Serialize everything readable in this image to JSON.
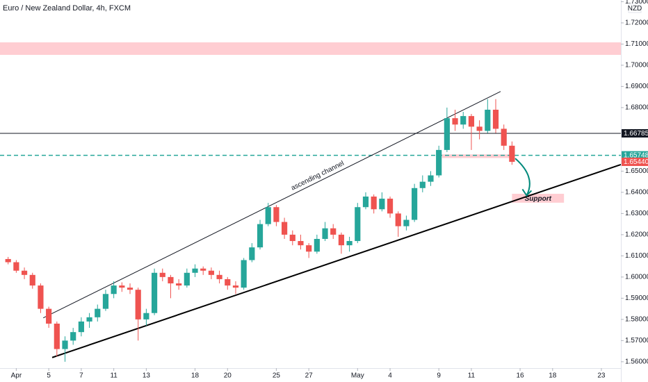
{
  "chart_data": {
    "type": "candlestick",
    "title": "Euro / New Zealand Dollar, 4h, FXCM",
    "currency": "NZD",
    "up_color": "#26a69a",
    "down_color": "#ef5350",
    "grid": false,
    "xlim": [
      -3,
      35.2
    ],
    "ylim": [
      1.557,
      1.7308
    ],
    "xticks": [
      {
        "value": -2,
        "label": "Apr"
      },
      {
        "value": 0,
        "label": "5"
      },
      {
        "value": 2,
        "label": "7"
      },
      {
        "value": 4,
        "label": "11"
      },
      {
        "value": 6,
        "label": "13"
      },
      {
        "value": 9,
        "label": "18"
      },
      {
        "value": 11,
        "label": "20"
      },
      {
        "value": 14,
        "label": "25"
      },
      {
        "value": 16,
        "label": "27"
      },
      {
        "value": 19,
        "label": "May"
      },
      {
        "value": 21,
        "label": "4"
      },
      {
        "value": 24,
        "label": "9"
      },
      {
        "value": 26,
        "label": "11"
      },
      {
        "value": 29,
        "label": "16"
      },
      {
        "value": 31,
        "label": "18"
      },
      {
        "value": 34,
        "label": "23"
      }
    ],
    "yticks": [
      {
        "value": 1.56,
        "label": "1.56000"
      },
      {
        "value": 1.57,
        "label": "1.57000"
      },
      {
        "value": 1.58,
        "label": "1.58000"
      },
      {
        "value": 1.59,
        "label": "1.59000"
      },
      {
        "value": 1.6,
        "label": "1.60000"
      },
      {
        "value": 1.61,
        "label": "1.61000"
      },
      {
        "value": 1.62,
        "label": "1.62000"
      },
      {
        "value": 1.63,
        "label": "1.63000"
      },
      {
        "value": 1.64,
        "label": "1.64000"
      },
      {
        "value": 1.65,
        "label": "1.65000"
      },
      {
        "value": 1.68,
        "label": "1.68000"
      },
      {
        "value": 1.69,
        "label": "1.69000"
      },
      {
        "value": 1.7,
        "label": "1.70000"
      },
      {
        "value": 1.71,
        "label": "1.71000"
      },
      {
        "value": 1.72,
        "label": "1.72000"
      },
      {
        "value": 1.73,
        "label": "1.73000"
      }
    ],
    "x": [
      -2.5,
      -2,
      -1.5,
      -1,
      -0.5,
      0,
      0.5,
      1,
      1.5,
      2,
      2.5,
      3,
      3.5,
      4,
      4.5,
      5,
      5.5,
      6,
      6.5,
      7,
      7.5,
      8,
      8.5,
      9,
      9.5,
      10,
      10.5,
      11,
      11.5,
      12,
      12.5,
      13,
      13.5,
      14,
      14.5,
      15,
      15.5,
      16,
      16.5,
      17,
      17.5,
      18,
      18.5,
      19,
      19.5,
      20,
      20.5,
      21,
      21.5,
      22,
      22.5,
      23,
      23.5,
      24,
      24.5,
      25,
      25.5,
      26,
      26.5,
      27,
      27.5,
      28,
      28.5
    ],
    "ohlc": [
      [
        1.6085,
        1.6095,
        1.606,
        1.607
      ],
      [
        1.607,
        1.608,
        1.602,
        1.603
      ],
      [
        1.603,
        1.6045,
        1.599,
        1.601
      ],
      [
        1.601,
        1.602,
        1.5945,
        1.596
      ],
      [
        1.596,
        1.597,
        1.583,
        1.585
      ],
      [
        1.585,
        1.586,
        1.576,
        1.578
      ],
      [
        1.578,
        1.579,
        1.5625,
        1.566
      ],
      [
        1.566,
        1.572,
        1.56,
        1.57
      ],
      [
        1.57,
        1.576,
        1.568,
        1.574
      ],
      [
        1.574,
        1.581,
        1.572,
        1.579
      ],
      [
        1.579,
        1.583,
        1.576,
        1.581
      ],
      [
        1.581,
        1.587,
        1.579,
        1.585
      ],
      [
        1.585,
        1.594,
        1.584,
        1.592
      ],
      [
        1.592,
        1.598,
        1.59,
        1.596
      ],
      [
        1.596,
        1.5975,
        1.593,
        1.595
      ],
      [
        1.595,
        1.597,
        1.592,
        1.594
      ],
      [
        1.594,
        1.595,
        1.57,
        1.58
      ],
      [
        1.58,
        1.585,
        1.577,
        1.583
      ],
      [
        1.583,
        1.604,
        1.582,
        1.602
      ],
      [
        1.602,
        1.604,
        1.598,
        1.6
      ],
      [
        1.6,
        1.601,
        1.59,
        1.597
      ],
      [
        1.597,
        1.599,
        1.594,
        1.596
      ],
      [
        1.596,
        1.604,
        1.595,
        1.602
      ],
      [
        1.602,
        1.606,
        1.6,
        1.604
      ],
      [
        1.604,
        1.605,
        1.601,
        1.603
      ],
      [
        1.603,
        1.6045,
        1.599,
        1.601
      ],
      [
        1.601,
        1.603,
        1.597,
        1.599
      ],
      [
        1.599,
        1.6,
        1.594,
        1.596
      ],
      [
        1.596,
        1.598,
        1.592,
        1.595
      ],
      [
        1.595,
        1.609,
        1.594,
        1.608
      ],
      [
        1.608,
        1.616,
        1.607,
        1.614
      ],
      [
        1.614,
        1.627,
        1.613,
        1.625
      ],
      [
        1.625,
        1.635,
        1.624,
        1.633
      ],
      [
        1.633,
        1.634,
        1.624,
        1.626
      ],
      [
        1.626,
        1.628,
        1.618,
        1.62
      ],
      [
        1.62,
        1.622,
        1.615,
        1.617
      ],
      [
        1.617,
        1.62,
        1.613,
        1.615
      ],
      [
        1.615,
        1.616,
        1.609,
        1.612
      ],
      [
        1.612,
        1.62,
        1.611,
        1.618
      ],
      [
        1.618,
        1.626,
        1.617,
        1.623
      ],
      [
        1.623,
        1.625,
        1.618,
        1.62
      ],
      [
        1.62,
        1.621,
        1.611,
        1.615
      ],
      [
        1.615,
        1.619,
        1.612,
        1.617
      ],
      [
        1.617,
        1.635,
        1.616,
        1.633
      ],
      [
        1.633,
        1.64,
        1.632,
        1.638
      ],
      [
        1.638,
        1.639,
        1.63,
        1.632
      ],
      [
        1.632,
        1.64,
        1.631,
        1.637
      ],
      [
        1.637,
        1.638,
        1.628,
        1.63
      ],
      [
        1.63,
        1.631,
        1.619,
        1.624
      ],
      [
        1.624,
        1.629,
        1.622,
        1.627
      ],
      [
        1.627,
        1.644,
        1.626,
        1.642
      ],
      [
        1.642,
        1.648,
        1.64,
        1.645
      ],
      [
        1.645,
        1.65,
        1.643,
        1.648
      ],
      [
        1.648,
        1.662,
        1.647,
        1.66
      ],
      [
        1.66,
        1.68,
        1.659,
        1.675
      ],
      [
        1.675,
        1.679,
        1.669,
        1.672
      ],
      [
        1.672,
        1.678,
        1.67,
        1.676
      ],
      [
        1.676,
        1.677,
        1.66,
        1.671
      ],
      [
        1.671,
        1.674,
        1.665,
        1.669
      ],
      [
        1.669,
        1.684,
        1.668,
        1.679
      ],
      [
        1.679,
        1.684,
        1.668,
        1.67
      ],
      [
        1.67,
        1.672,
        1.66,
        1.662
      ],
      [
        1.662,
        1.664,
        1.653,
        1.6544
      ]
    ],
    "levels": [
      {
        "value": 1.66785,
        "label": "1.66785",
        "color": "#131722",
        "line": "solid"
      },
      {
        "value": 1.65748,
        "label": "1.65748",
        "color": "#26a69a",
        "line": "dashed"
      },
      {
        "value": 1.6544,
        "label": "1.65440",
        "color": "#ef5350",
        "line": "none"
      }
    ],
    "zones": [
      {
        "y": [
          1.7049,
          1.7108
        ],
        "color": "#ffcdd2"
      },
      {
        "x": [
          24.2,
          28.6
        ],
        "y": [
          1.6562,
          1.6579
        ],
        "color": "#ffcdd2"
      },
      {
        "x": [
          28.5,
          31.7
        ],
        "y": [
          1.6351,
          1.6393
        ],
        "color": "#ffcdd2",
        "label": "Support"
      }
    ],
    "channel": [
      {
        "x": [
          -0.34,
          27.8
        ],
        "y": [
          1.5807,
          1.6876
        ],
        "color": "#131722",
        "width": 1,
        "label": "ascending channel"
      },
      {
        "x": [
          0.21,
          35.2
        ],
        "y": [
          1.562,
          1.6531
        ],
        "color": "#000000",
        "width": 2
      }
    ],
    "arrow": {
      "x": [
        28.7,
        29.4
      ],
      "y": [
        1.656,
        1.6385
      ],
      "color": "#00897b"
    }
  }
}
